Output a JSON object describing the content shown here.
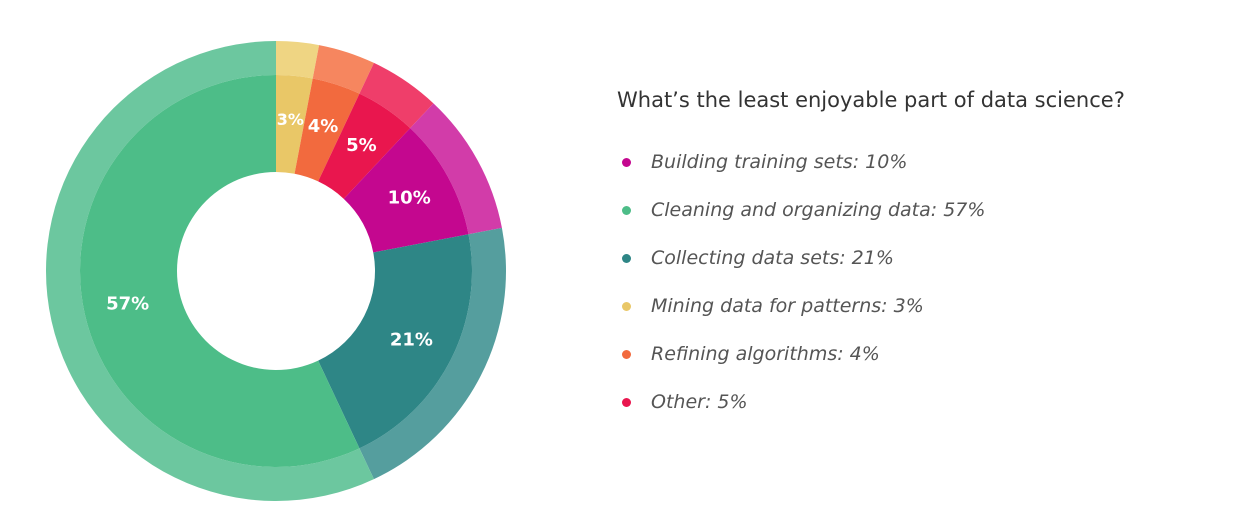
{
  "chart_data": {
    "type": "pie",
    "title": "What’s the least enjoyable part of data science?",
    "legend_position": "right",
    "slice_order": [
      "Mining data for patterns",
      "Refining algorithms",
      "Other",
      "Building training sets",
      "Collecting data sets",
      "Cleaning and organizing data"
    ],
    "slices": [
      {
        "label": "Building training sets",
        "value": 10,
        "display": "10%",
        "legend": "Building training sets: 10%",
        "color": "#c4078f",
        "outer_color": "#d23ca9"
      },
      {
        "label": "Cleaning and organizing data",
        "value": 57,
        "display": "57%",
        "legend": "Cleaning and organizing data: 57%",
        "color": "#4dbd88",
        "outer_color": "#6cc79f"
      },
      {
        "label": "Collecting data sets",
        "value": 21,
        "display": "21%",
        "legend": "Collecting data sets: 21%",
        "color": "#2e8686",
        "outer_color": "#559e9e"
      },
      {
        "label": "Mining data for patterns",
        "value": 3,
        "display": "3%",
        "legend": "Mining data for patterns: 3%",
        "color": "#e9c767",
        "outer_color": "#efd583"
      },
      {
        "label": "Refining algorithms",
        "value": 4,
        "display": "4%",
        "legend": "Refining algorithms: 4%",
        "color": "#f26a3e",
        "outer_color": "#f6865f"
      },
      {
        "label": "Other",
        "value": 5,
        "display": "5%",
        "legend": "Other: 5%",
        "color": "#e9164e",
        "outer_color": "#ef3e6a"
      }
    ]
  }
}
